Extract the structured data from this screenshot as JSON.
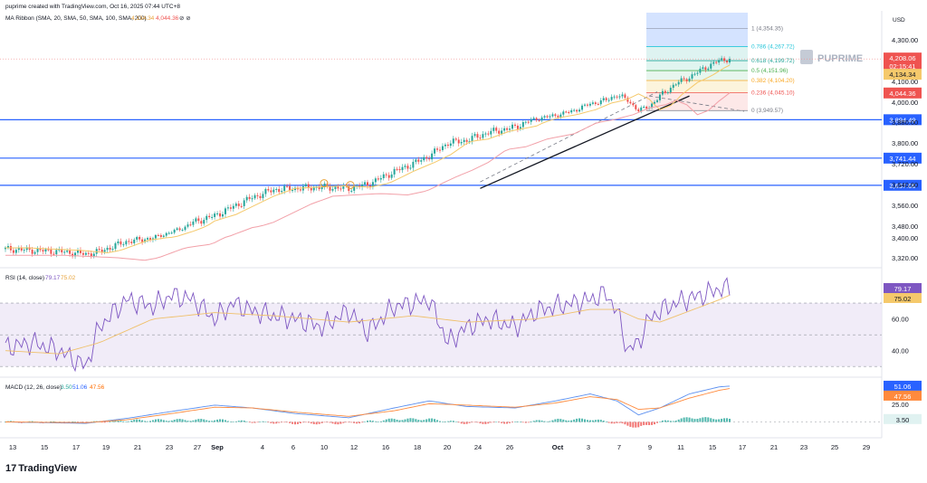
{
  "header": {
    "created_by": "puprime created with TradingView.com, Oct 16, 2025 07:44 UTC+8",
    "currency": "USD"
  },
  "watermark": "PUPRIME",
  "footer": {
    "logo_text": "TradingView",
    "logo_mark": "17"
  },
  "colors": {
    "up": "#26a69a",
    "down": "#ef5350",
    "sma20": "#f5c96b",
    "sma50": "#f2a0a8",
    "hline": "#2962ff",
    "rsi": "#7e57c2",
    "rsi_ma": "#f0c06a",
    "macd": "#5b8ff0",
    "signal": "#ff8a3d"
  },
  "chart_data": [
    {
      "type": "candlestick",
      "legend": "MA Ribbon (SMA, 20, SMA, 50, SMA, 100, SMA, 200)",
      "legend_values": [
        "4,134.34",
        "4,044.36"
      ],
      "y_ticks": [
        "4,300.00",
        "4,200.00",
        "4,100.00",
        "4,000.00",
        "3,880.00",
        "3,800.00",
        "3,720.00",
        "3,640.00",
        "3,560.00",
        "3,480.00",
        "3,400.00",
        "3,320.00"
      ],
      "y_tick_values": [
        4300,
        4200,
        4100,
        4000,
        3880,
        3800,
        3720,
        3640,
        3560,
        3480,
        3400,
        3320
      ],
      "ylim": [
        3275,
        4460
      ],
      "x_ticks": [
        "13",
        "15",
        "17",
        "19",
        "21",
        "23",
        "27",
        "Sep",
        "4",
        "6",
        "10",
        "12",
        "16",
        "18",
        "20",
        "24",
        "26",
        "Oct",
        "3",
        "7",
        "9",
        "11",
        "15",
        "17",
        "21",
        "23",
        "25",
        "29"
      ],
      "last_price": "4,208.06",
      "countdown": "02:15:41",
      "ma_labels": [
        "4,134.34",
        "4,044.36"
      ],
      "horizontal_levels": [
        {
          "label": "3,894.49",
          "value": 3894.49
        },
        {
          "label": "3,741.44",
          "value": 3741.44
        },
        {
          "label": "3,637.06",
          "value": 3637.06
        }
      ],
      "fibonacci": [
        {
          "label": "1 (4,354.35)",
          "value": 4354.35
        },
        {
          "label": "0.786 (4,267.72)",
          "value": 4267.72
        },
        {
          "label": "0.618 (4,199.72)",
          "value": 4199.72
        },
        {
          "label": "0.5 (4,151.96)",
          "value": 4151.96
        },
        {
          "label": "0.382 (4,104.20)",
          "value": 4104.2
        },
        {
          "label": "0.236 (4,045.10)",
          "value": 4045.1
        },
        {
          "label": "0 (3,949.57)",
          "value": 3949.57
        }
      ],
      "close_path": [
        [
          0,
          3355
        ],
        [
          10,
          3350
        ],
        [
          20,
          3345
        ],
        [
          30,
          3335
        ],
        [
          35,
          3345
        ],
        [
          45,
          3385
        ],
        [
          55,
          3400
        ],
        [
          62,
          3440
        ],
        [
          70,
          3495
        ],
        [
          78,
          3520
        ],
        [
          85,
          3555
        ],
        [
          92,
          3590
        ],
        [
          100,
          3620
        ],
        [
          108,
          3625
        ],
        [
          118,
          3630
        ],
        [
          128,
          3625
        ],
        [
          135,
          3640
        ],
        [
          145,
          3690
        ],
        [
          152,
          3720
        ],
        [
          158,
          3750
        ],
        [
          165,
          3800
        ],
        [
          172,
          3810
        ],
        [
          180,
          3840
        ],
        [
          190,
          3860
        ],
        [
          198,
          3900
        ],
        [
          205,
          3920
        ],
        [
          212,
          3950
        ],
        [
          218,
          3990
        ],
        [
          224,
          4010
        ],
        [
          228,
          4035
        ],
        [
          232,
          4010
        ],
        [
          236,
          3950
        ],
        [
          240,
          3975
        ],
        [
          244,
          4030
        ],
        [
          250,
          4090
        ],
        [
          255,
          4120
        ],
        [
          260,
          4160
        ],
        [
          266,
          4200
        ],
        [
          270,
          4208
        ]
      ]
    },
    {
      "type": "line",
      "name_label": "RSI (14, close)",
      "legend_values": [
        "79.17",
        "75.02"
      ],
      "y_ticks": [
        "60.00",
        "40.00"
      ],
      "y_tick_values": [
        60,
        40
      ],
      "ylim": [
        25,
        90
      ],
      "band": [
        30,
        70
      ],
      "mid": 50,
      "last_values": [
        "79.17",
        "75.02"
      ],
      "rsi": [
        [
          0,
          42
        ],
        [
          10,
          45
        ],
        [
          20,
          40
        ],
        [
          30,
          30
        ],
        [
          35,
          55
        ],
        [
          45,
          72
        ],
        [
          55,
          68
        ],
        [
          62,
          75
        ],
        [
          70,
          72
        ],
        [
          78,
          60
        ],
        [
          85,
          70
        ],
        [
          92,
          65
        ],
        [
          100,
          62
        ],
        [
          108,
          60
        ],
        [
          118,
          55
        ],
        [
          128,
          65
        ],
        [
          135,
          52
        ],
        [
          145,
          68
        ],
        [
          152,
          70
        ],
        [
          158,
          72
        ],
        [
          165,
          45
        ],
        [
          172,
          55
        ],
        [
          180,
          60
        ],
        [
          190,
          55
        ],
        [
          198,
          65
        ],
        [
          205,
          68
        ],
        [
          212,
          70
        ],
        [
          218,
          72
        ],
        [
          224,
          76
        ],
        [
          228,
          65
        ],
        [
          232,
          40
        ],
        [
          236,
          45
        ],
        [
          240,
          60
        ],
        [
          244,
          65
        ],
        [
          250,
          70
        ],
        [
          255,
          73
        ],
        [
          260,
          75
        ],
        [
          266,
          79
        ],
        [
          270,
          79.17
        ]
      ],
      "rsi_ma": [
        [
          0,
          40
        ],
        [
          20,
          38
        ],
        [
          35,
          45
        ],
        [
          55,
          60
        ],
        [
          78,
          64
        ],
        [
          100,
          62
        ],
        [
          128,
          58
        ],
        [
          152,
          62
        ],
        [
          172,
          58
        ],
        [
          198,
          60
        ],
        [
          218,
          66
        ],
        [
          228,
          66
        ],
        [
          236,
          60
        ],
        [
          244,
          58
        ],
        [
          255,
          65
        ],
        [
          266,
          72
        ],
        [
          270,
          75.02
        ]
      ]
    },
    {
      "type": "bar",
      "name_label": "MACD (12, 26, close)",
      "legend_values": [
        "3.50",
        "51.06",
        "47.56"
      ],
      "y_ticks": [
        "25.00"
      ],
      "y_tick_values": [
        25
      ],
      "ylim": [
        -20,
        60
      ],
      "last_values": [
        "51.06",
        "47.56",
        "3.50"
      ],
      "macd": [
        [
          0,
          0
        ],
        [
          30,
          -2
        ],
        [
          45,
          5
        ],
        [
          62,
          15
        ],
        [
          78,
          24
        ],
        [
          92,
          20
        ],
        [
          108,
          12
        ],
        [
          128,
          6
        ],
        [
          145,
          20
        ],
        [
          158,
          30
        ],
        [
          172,
          22
        ],
        [
          190,
          20
        ],
        [
          205,
          30
        ],
        [
          218,
          40
        ],
        [
          228,
          30
        ],
        [
          236,
          10
        ],
        [
          244,
          20
        ],
        [
          255,
          40
        ],
        [
          266,
          50
        ],
        [
          270,
          51.06
        ]
      ],
      "signal": [
        [
          0,
          0
        ],
        [
          30,
          -1
        ],
        [
          45,
          3
        ],
        [
          62,
          12
        ],
        [
          78,
          21
        ],
        [
          92,
          20
        ],
        [
          108,
          14
        ],
        [
          128,
          8
        ],
        [
          145,
          16
        ],
        [
          158,
          26
        ],
        [
          172,
          24
        ],
        [
          190,
          21
        ],
        [
          205,
          27
        ],
        [
          218,
          36
        ],
        [
          228,
          32
        ],
        [
          236,
          18
        ],
        [
          244,
          20
        ],
        [
          255,
          34
        ],
        [
          266,
          45
        ],
        [
          270,
          47.56
        ]
      ]
    }
  ]
}
